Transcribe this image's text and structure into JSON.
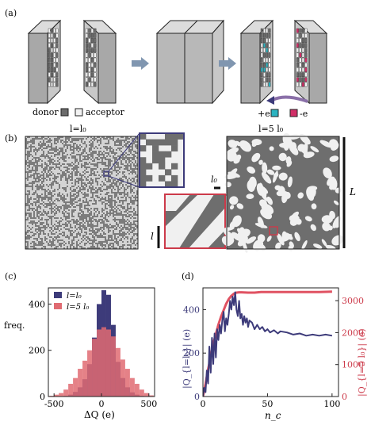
{
  "panels": {
    "a": {
      "label": "(a)",
      "legend": {
        "donor": "donor",
        "acceptor": "acceptor"
      },
      "charge_labels": {
        "plus": "+e",
        "minus": "-e"
      },
      "colors": {
        "donor": "#6b6b6b",
        "acceptor": "#f2f2f2",
        "plus": "#2bb3c0",
        "minus": "#d12e67",
        "block_face": "#a8a8a8",
        "block_top": "#dcdcdc",
        "block_side": "#c8c8c8",
        "arrow": "#8096b0"
      }
    },
    "b": {
      "label": "(b)",
      "title_left": "l=l₀",
      "title_right": "l=5 l₀",
      "scale_l": "l",
      "scale_l0": "l₀",
      "scale_L": "L",
      "colors": {
        "zoom_left": "#3d3b7a",
        "zoom_right": "#cc3a4a",
        "dark": "#6e6e6e",
        "light": "#f0f0f0"
      }
    },
    "c": {
      "label": "(c)"
    },
    "d": {
      "label": "(d)"
    }
  },
  "chart_data": [
    {
      "type": "bar",
      "panel": "c",
      "xlabel": "ΔQ (e)",
      "ylabel": "freq.",
      "xlim": [
        -560,
        560
      ],
      "ylim": [
        0,
        470
      ],
      "xticks": [
        -500,
        0,
        500
      ],
      "yticks": [
        0,
        200,
        400
      ],
      "legend_position": "top-left",
      "bin_width": 50,
      "bin_starts": [
        -550,
        -500,
        -450,
        -400,
        -350,
        -300,
        -250,
        -200,
        -150,
        -100,
        -50,
        0,
        50,
        100,
        150,
        200,
        250,
        300,
        350,
        400,
        450,
        500
      ],
      "series": [
        {
          "name": "l=l₀",
          "color": "#3d3b7a",
          "values": [
            0,
            0,
            0,
            3,
            8,
            20,
            40,
            75,
            140,
            255,
            400,
            460,
            440,
            310,
            150,
            80,
            40,
            18,
            8,
            3,
            0,
            0
          ]
        },
        {
          "name": "l=5 l₀",
          "color": "#e06b72",
          "values": [
            3,
            8,
            15,
            30,
            55,
            80,
            120,
            155,
            200,
            250,
            290,
            300,
            290,
            260,
            210,
            160,
            120,
            80,
            55,
            30,
            15,
            5
          ]
        }
      ]
    },
    {
      "type": "line",
      "panel": "d",
      "xlabel": "n_c",
      "ylabel_left": "|Q_{l=l₀}| (e)",
      "ylabel_right": "|Q_{l=5 l₀}| (e)",
      "xlim": [
        0,
        105
      ],
      "ylim_left": [
        0,
        500
      ],
      "ylim_right": [
        0,
        3400
      ],
      "xticks": [
        0,
        50,
        100
      ],
      "yticks_left": [
        0,
        200,
        400
      ],
      "yticks_right": [
        0,
        1000,
        2000,
        3000
      ],
      "series": [
        {
          "name": "l=l₀",
          "axis": "left",
          "color": "#3d3b7a",
          "x": [
            0,
            1,
            2,
            3,
            4,
            5,
            6,
            7,
            8,
            9,
            10,
            11,
            12,
            13,
            14,
            15,
            16,
            17,
            18,
            19,
            20,
            21,
            22,
            23,
            24,
            25,
            26,
            27,
            28,
            29,
            30,
            31,
            32,
            33,
            34,
            35,
            36,
            38,
            40,
            42,
            44,
            46,
            48,
            50,
            52,
            55,
            58,
            60,
            65,
            70,
            75,
            80,
            85,
            90,
            95,
            100
          ],
          "y": [
            0,
            40,
            20,
            120,
            60,
            230,
            110,
            270,
            150,
            290,
            180,
            310,
            260,
            330,
            290,
            350,
            390,
            300,
            360,
            330,
            380,
            440,
            400,
            460,
            420,
            480,
            400,
            370,
            440,
            360,
            380,
            330,
            370,
            340,
            360,
            320,
            350,
            340,
            310,
            330,
            310,
            320,
            300,
            310,
            295,
            305,
            290,
            300,
            295,
            285,
            290,
            280,
            285,
            280,
            285,
            280
          ]
        },
        {
          "name": "l=5 l₀",
          "axis": "right",
          "color": "#e05262",
          "x": [
            0,
            2,
            4,
            6,
            8,
            10,
            12,
            14,
            16,
            18,
            20,
            22,
            24,
            26,
            28,
            30,
            35,
            40,
            45,
            50,
            60,
            70,
            80,
            90,
            100
          ],
          "y": [
            0,
            400,
            850,
            1250,
            1650,
            1950,
            2250,
            2500,
            2700,
            2900,
            3050,
            3150,
            3220,
            3250,
            3260,
            3260,
            3250,
            3250,
            3270,
            3270,
            3270,
            3270,
            3270,
            3270,
            3280
          ]
        }
      ]
    }
  ]
}
